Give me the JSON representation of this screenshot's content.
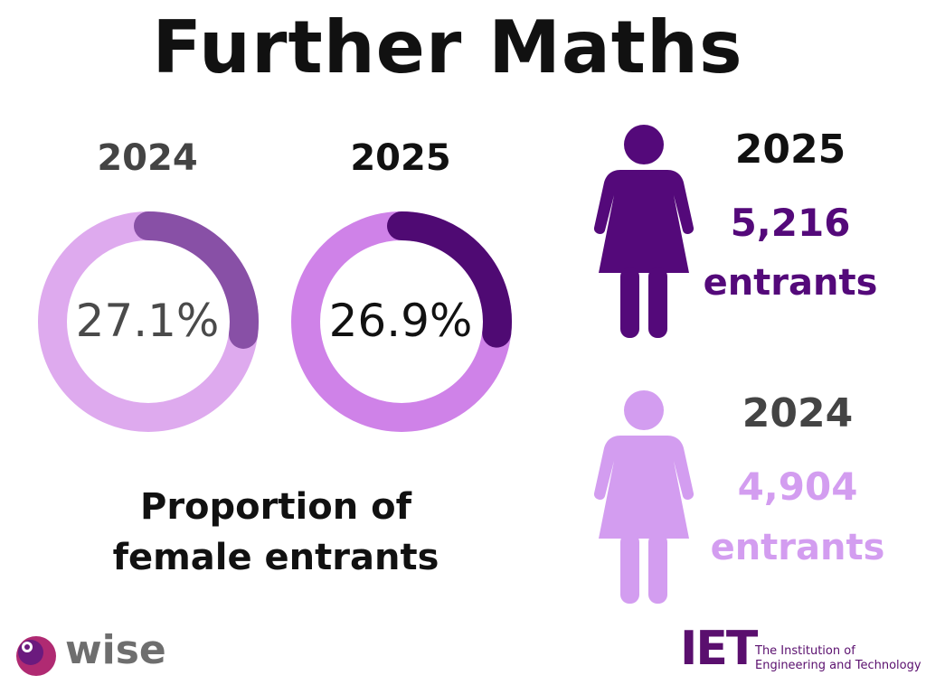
{
  "title": "Further Maths",
  "chart_data": [
    {
      "type": "pie",
      "variant": "donut",
      "year": "2024",
      "label": "27.1%",
      "value": 27.1,
      "colors": {
        "track": "#deaaee",
        "fill": "#8850a6",
        "text": "#4a4a4a",
        "year": "#444444"
      }
    },
    {
      "type": "pie",
      "variant": "donut",
      "year": "2025",
      "label": "26.9%",
      "value": 26.9,
      "colors": {
        "track": "#cf82e8",
        "fill": "#4f0a73",
        "text": "#111111",
        "year": "#111111"
      }
    }
  ],
  "caption_line1": "Proportion of",
  "caption_line2": "female entrants",
  "stats": [
    {
      "year": "2025",
      "count": "5,216",
      "unit": "entrants",
      "icon": "woman-icon",
      "color": "#54097a",
      "year_color": "#111111"
    },
    {
      "year": "2024",
      "count": "4,904",
      "unit": "entrants",
      "icon": "woman-icon",
      "color": "#d39df0",
      "year_color": "#444444"
    }
  ],
  "logos": {
    "wise": "wise",
    "iet_mark": "IET",
    "iet_line1": "The Institution of",
    "iet_line2": "Engineering and Technology"
  }
}
